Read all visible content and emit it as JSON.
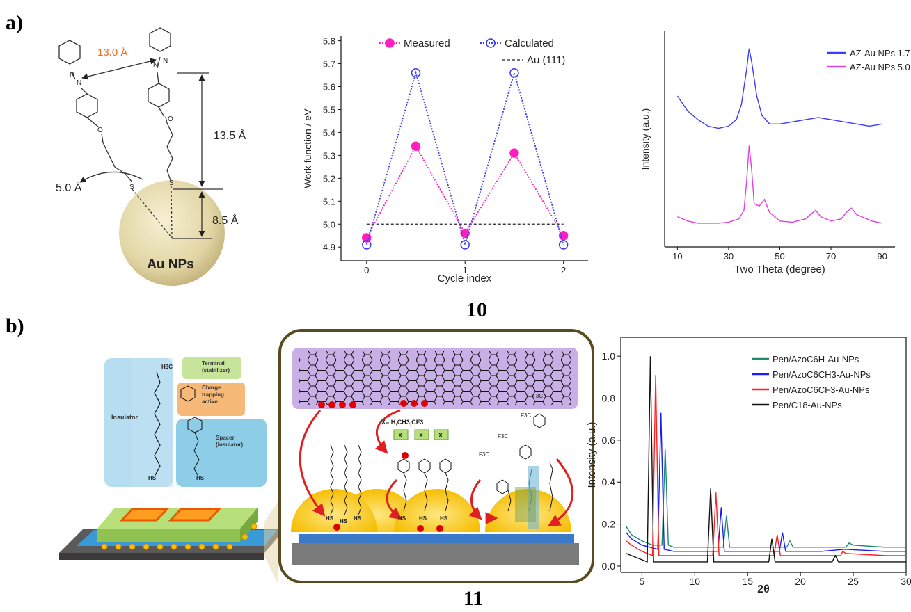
{
  "panel_labels": [
    "a)",
    "b)"
  ],
  "figure_numbers": [
    "10",
    "11"
  ],
  "diagram_a": {
    "labels": [
      "13.0 Å",
      "13.5 Å",
      "5.0 Å",
      "8.5 Å",
      "Au NPs"
    ],
    "atoms": [
      "N",
      "N",
      "O",
      "S",
      "N",
      "N",
      "O",
      "S"
    ]
  },
  "diagram_b": {
    "components": [
      [
        "Insulator"
      ],
      [
        "Terminal",
        "(stabilizer)"
      ],
      [
        "Charge",
        "trapping",
        "active"
      ],
      [
        "Spacer",
        "(insulator)"
      ]
    ],
    "groups": [
      "H3C",
      "HS",
      "HS"
    ],
    "inset_formula": "X= H,CH3,CF3",
    "inset_x": [
      "X",
      "X",
      "X"
    ],
    "inset_hs": [
      "HS",
      "HS",
      "HS",
      "HS",
      "HS",
      "HS"
    ],
    "inset_f3c": [
      "F3C",
      "F3C",
      "F3C",
      "F3C"
    ]
  },
  "chart_data": [
    {
      "type": "line",
      "ylabel": "Work function / eV",
      "xlabel": "Cycle index",
      "x": [
        0,
        0.5,
        1,
        1.5,
        2
      ],
      "series": [
        {
          "name": "Measured",
          "color": "#ff1fbf",
          "marker": "filled",
          "values": [
            4.94,
            5.34,
            4.96,
            5.31,
            4.95
          ]
        },
        {
          "name": "Calculated",
          "color": "#3a3af0",
          "marker": "open",
          "values": [
            4.91,
            5.66,
            4.91,
            5.66,
            4.91
          ]
        }
      ],
      "hlines": [
        {
          "name": "Au (111)",
          "value": 5,
          "color": "#222222",
          "xlim": [
            0,
            2
          ]
        }
      ],
      "line_style": "dotted",
      "xlim": [
        -0.26,
        2.25
      ],
      "ylim": [
        4.84,
        5.82
      ],
      "xticks": [
        0,
        1,
        2
      ],
      "yticks": [
        4.9,
        {
          "value": 5,
          "label": "5.0"
        },
        5.1,
        5.2,
        5.3,
        5.4,
        5.5,
        5.6,
        5.7,
        5.8
      ]
    },
    {
      "type": "line",
      "ylabel": "Intensity (a.u.)",
      "xlabel": "Two Theta (degree)",
      "series": [
        {
          "name": "AZ-Au NPs 1.7",
          "color": "#3b3bff",
          "x": [
            10,
            14,
            18,
            22,
            26,
            30,
            33,
            35,
            37,
            38,
            39,
            41,
            43,
            46,
            50,
            55,
            60,
            65,
            70,
            75,
            80,
            85,
            90
          ],
          "values": [
            7.0,
            6.3,
            5.9,
            5.6,
            5.5,
            5.6,
            5.9,
            6.6,
            8.2,
            9.2,
            8.6,
            7.0,
            6.1,
            5.7,
            5.7,
            5.8,
            5.9,
            6.0,
            5.9,
            5.8,
            5.7,
            5.6,
            5.7
          ]
        },
        {
          "name": "AZ-Au NPs 5.0",
          "color": "#e040e0",
          "x": [
            10,
            14,
            18,
            22,
            26,
            30,
            34,
            36,
            37,
            38,
            39,
            40,
            42,
            44,
            46,
            50,
            55,
            60,
            62,
            64,
            66,
            70,
            74,
            76,
            78,
            80,
            82,
            86,
            90
          ],
          "values": [
            1.4,
            1.2,
            1.1,
            1.1,
            1.1,
            1.15,
            1.3,
            1.7,
            3.0,
            4.7,
            3.6,
            2.0,
            1.9,
            2.2,
            1.6,
            1.2,
            1.15,
            1.3,
            1.5,
            1.7,
            1.4,
            1.2,
            1.3,
            1.6,
            1.8,
            1.5,
            1.4,
            1.2,
            1.1
          ]
        }
      ],
      "xlim": [
        5,
        95
      ],
      "ylim": [
        0,
        10
      ],
      "xticks": [
        10,
        30,
        50,
        70,
        90
      ]
    },
    {
      "type": "line",
      "ylabel": "Intensity (a.u.)",
      "xlabel": "2θ",
      "series": [
        {
          "name": "Pen/AzoC6H-Au-NPs",
          "color": "#1f8a70",
          "x": [
            3.5,
            4,
            5,
            6,
            6.9,
            7.2,
            7.5,
            8,
            10,
            12.7,
            13,
            13.3,
            15,
            18.7,
            19,
            19.3,
            22,
            24.3,
            24.6,
            25,
            28,
            30
          ],
          "values": [
            0.19,
            0.15,
            0.12,
            0.1,
            0.1,
            0.56,
            0.1,
            0.09,
            0.09,
            0.09,
            0.24,
            0.09,
            0.09,
            0.09,
            0.12,
            0.09,
            0.09,
            0.09,
            0.11,
            0.1,
            0.09,
            0.09
          ]
        },
        {
          "name": "Pen/AzoC6CH3-Au-NPs",
          "color": "#1a1aff",
          "x": [
            3.5,
            4,
            5,
            6.5,
            6.8,
            7.1,
            8,
            10,
            12.2,
            12.5,
            12.8,
            15,
            18,
            18.3,
            18.6,
            22,
            24.2,
            28,
            30
          ],
          "values": [
            0.16,
            0.13,
            0.1,
            0.08,
            0.73,
            0.08,
            0.07,
            0.07,
            0.07,
            0.28,
            0.07,
            0.07,
            0.07,
            0.16,
            0.07,
            0.07,
            0.08,
            0.07,
            0.07
          ]
        },
        {
          "name": "Pen/AzoC6CF3-Au-NPs",
          "color": "#ff2020",
          "x": [
            3.5,
            4,
            5,
            6,
            6.3,
            6.6,
            8,
            10,
            11.7,
            12,
            12.3,
            15,
            17.5,
            17.8,
            18.1,
            22,
            23.8,
            24,
            24.3,
            28,
            30
          ],
          "values": [
            0.12,
            0.1,
            0.07,
            0.05,
            0.91,
            0.05,
            0.05,
            0.05,
            0.05,
            0.35,
            0.05,
            0.05,
            0.05,
            0.15,
            0.05,
            0.05,
            0.05,
            0.07,
            0.06,
            0.05,
            0.05
          ]
        },
        {
          "name": "Pen/C18-Au-NPs",
          "color": "#111111",
          "x": [
            3.5,
            4,
            5,
            5.5,
            5.8,
            6.1,
            8,
            10,
            11.2,
            11.5,
            11.8,
            15,
            17,
            17.3,
            17.6,
            22,
            23,
            23.3,
            23.6,
            28,
            30
          ],
          "values": [
            0.06,
            0.05,
            0.03,
            0.02,
            1.0,
            0.02,
            0.02,
            0.02,
            0.02,
            0.37,
            0.02,
            0.02,
            0.02,
            0.13,
            0.02,
            0.02,
            0.02,
            0.05,
            0.02,
            0.02,
            0.02
          ]
        }
      ],
      "xlim": [
        3,
        30
      ],
      "ylim": [
        -0.03,
        1.09
      ],
      "xticks": [
        5,
        10,
        15,
        20,
        25,
        30
      ],
      "yticks": [
        {
          "value": 0,
          "label": "0.0"
        },
        0.2,
        0.4,
        0.6,
        0.8,
        {
          "value": 1,
          "label": "1.0"
        }
      ]
    }
  ]
}
